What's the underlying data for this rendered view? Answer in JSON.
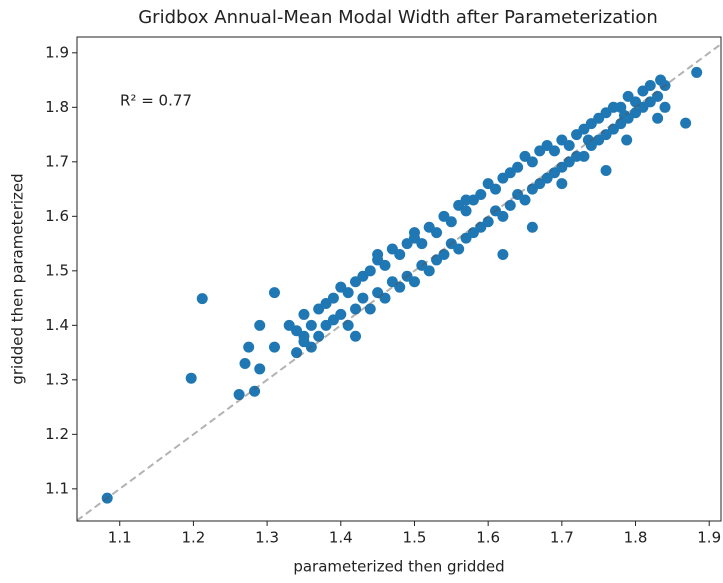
{
  "chart_data": {
    "type": "scatter",
    "title": "Gridbox Annual-Mean Modal Width after Parameterization",
    "xlabel": "parameterized then gridded",
    "ylabel": "gridded then parameterized",
    "annotation": "R² = 0.77",
    "color": "#1f77b4",
    "identity_line": true,
    "xlim": [
      1.042,
      1.916
    ],
    "ylim": [
      1.041,
      1.929
    ],
    "xticks": [
      1.1,
      1.2,
      1.3,
      1.4,
      1.5,
      1.6,
      1.7,
      1.8,
      1.9
    ],
    "yticks": [
      1.1,
      1.2,
      1.3,
      1.4,
      1.5,
      1.6,
      1.7,
      1.8,
      1.9
    ],
    "x": [
      1.083,
      1.197,
      1.212,
      1.262,
      1.283,
      1.27,
      1.275,
      1.29,
      1.29,
      1.31,
      1.31,
      1.33,
      1.35,
      1.42,
      1.883,
      1.868,
      1.834,
      1.76,
      1.785,
      1.788,
      1.736,
      1.66,
      1.7,
      1.62,
      1.45,
      1.5,
      1.57,
      1.34,
      1.34,
      1.35,
      1.35,
      1.36,
      1.36,
      1.37,
      1.37,
      1.38,
      1.38,
      1.39,
      1.39,
      1.4,
      1.4,
      1.41,
      1.41,
      1.42,
      1.42,
      1.43,
      1.43,
      1.44,
      1.44,
      1.45,
      1.45,
      1.46,
      1.46,
      1.47,
      1.47,
      1.48,
      1.48,
      1.49,
      1.49,
      1.5,
      1.5,
      1.51,
      1.51,
      1.52,
      1.52,
      1.53,
      1.53,
      1.54,
      1.54,
      1.55,
      1.55,
      1.56,
      1.56,
      1.57,
      1.57,
      1.58,
      1.58,
      1.59,
      1.59,
      1.6,
      1.6,
      1.61,
      1.61,
      1.62,
      1.62,
      1.63,
      1.63,
      1.64,
      1.64,
      1.65,
      1.65,
      1.66,
      1.66,
      1.67,
      1.67,
      1.68,
      1.68,
      1.69,
      1.69,
      1.7,
      1.7,
      1.71,
      1.71,
      1.72,
      1.72,
      1.73,
      1.73,
      1.74,
      1.74,
      1.75,
      1.75,
      1.76,
      1.76,
      1.77,
      1.77,
      1.78,
      1.78,
      1.79,
      1.79,
      1.8,
      1.8,
      1.81,
      1.81,
      1.82,
      1.82,
      1.83,
      1.83,
      1.84,
      1.84
    ],
    "y": [
      1.083,
      1.303,
      1.449,
      1.273,
      1.279,
      1.33,
      1.36,
      1.32,
      1.4,
      1.46,
      1.36,
      1.4,
      1.38,
      1.38,
      1.864,
      1.771,
      1.85,
      1.684,
      1.785,
      1.74,
      1.74,
      1.58,
      1.66,
      1.53,
      1.53,
      1.57,
      1.63,
      1.39,
      1.35,
      1.42,
      1.37,
      1.4,
      1.36,
      1.43,
      1.38,
      1.44,
      1.4,
      1.45,
      1.41,
      1.47,
      1.42,
      1.46,
      1.4,
      1.48,
      1.43,
      1.49,
      1.45,
      1.5,
      1.43,
      1.52,
      1.46,
      1.51,
      1.45,
      1.54,
      1.48,
      1.53,
      1.47,
      1.55,
      1.49,
      1.56,
      1.48,
      1.55,
      1.51,
      1.58,
      1.5,
      1.57,
      1.52,
      1.6,
      1.53,
      1.59,
      1.55,
      1.62,
      1.54,
      1.61,
      1.56,
      1.63,
      1.57,
      1.64,
      1.58,
      1.66,
      1.59,
      1.65,
      1.61,
      1.67,
      1.6,
      1.68,
      1.62,
      1.69,
      1.64,
      1.71,
      1.63,
      1.7,
      1.65,
      1.72,
      1.66,
      1.73,
      1.67,
      1.72,
      1.68,
      1.74,
      1.69,
      1.73,
      1.7,
      1.75,
      1.71,
      1.76,
      1.71,
      1.77,
      1.73,
      1.78,
      1.74,
      1.79,
      1.75,
      1.8,
      1.76,
      1.8,
      1.77,
      1.82,
      1.78,
      1.81,
      1.79,
      1.83,
      1.8,
      1.84,
      1.81,
      1.82,
      1.78,
      1.84,
      1.8
    ]
  }
}
